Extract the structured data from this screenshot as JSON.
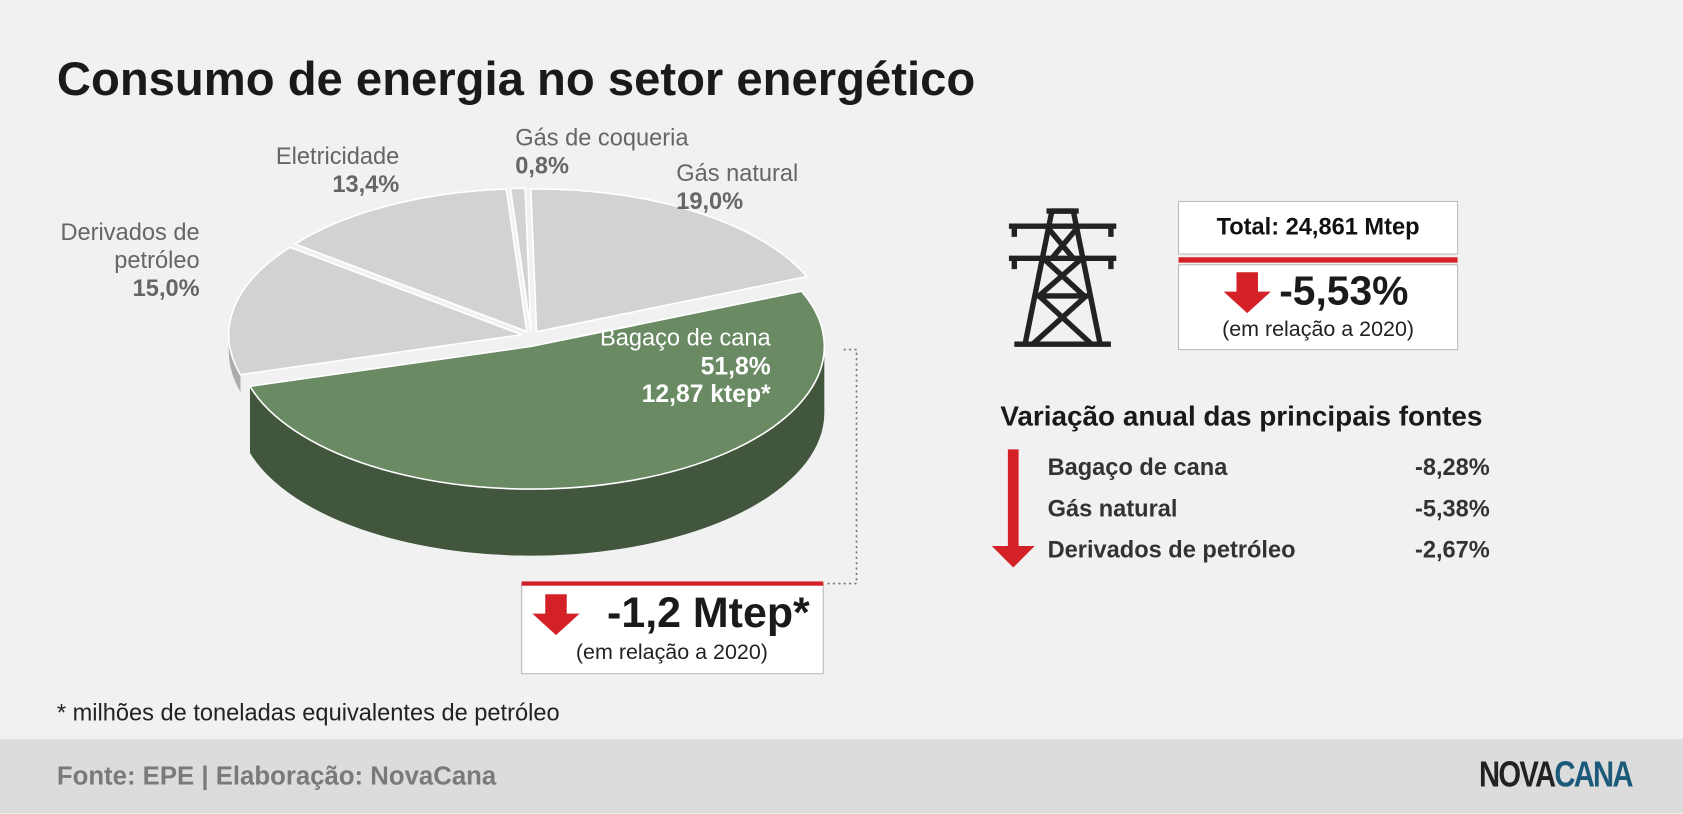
{
  "chart_data": {
    "type": "pie",
    "title": "Consumo de energia no setor energético",
    "categories": [
      "Gás de coqueria",
      "Gás natural",
      "Bagaço de cana",
      "Derivados de petróleo",
      "Eletricidade"
    ],
    "values": [
      0.8,
      19.0,
      51.8,
      15.0,
      13.4
    ],
    "value_labels": [
      "0,8%",
      "19,0%",
      "51,8%",
      "15,0%",
      "13,4%"
    ],
    "colors": [
      "#d2d2d3",
      "#d2d2d3",
      "#6a8a64",
      "#d2d2d3",
      "#d2d2d3"
    ],
    "annotations": [
      "12,87 ktep*"
    ]
  },
  "change_box": {
    "value": "-1,2 Mtep*",
    "note": "(em relação a 2020)"
  },
  "total": {
    "label": "Total: 24,861 Mtep",
    "change": "-5,53%",
    "note": "(em relação a 2020)"
  },
  "variation": {
    "title": "Variação anual das principais fontes",
    "rows": [
      [
        "Bagaço de cana",
        "-8,28%"
      ],
      [
        "Gás natural",
        "-5,38%"
      ],
      [
        "Derivados de petróleo",
        "-2,67%"
      ]
    ]
  },
  "footnote": "* milhões de toneladas equivalentes de petróleo",
  "source": "Fonte: EPE | Elaboração: NovaCana",
  "logo": [
    "NOVA",
    "CANA"
  ]
}
